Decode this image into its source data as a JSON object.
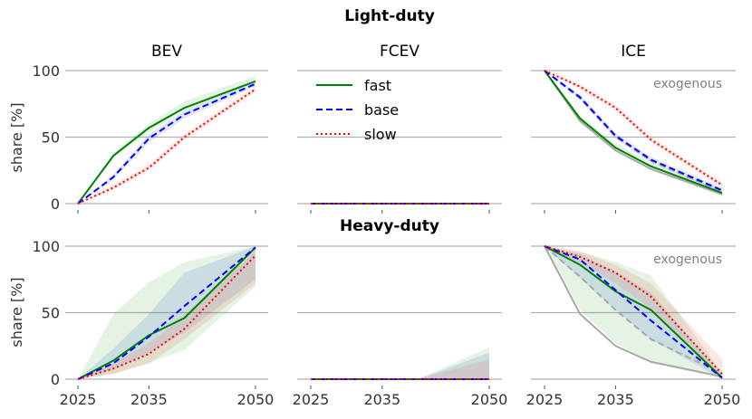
{
  "figure": {
    "title_light": "Light-duty",
    "title_heavy": "Heavy-duty",
    "col_titles": [
      "BEV",
      "FCEV",
      "ICE"
    ],
    "ylabel": "share [%]",
    "annotation": "exogenous"
  },
  "chart_data": {
    "type": "line",
    "x": [
      2025,
      2030,
      2035,
      2040,
      2050
    ],
    "xticks": [
      "2025",
      "2035",
      "2050"
    ],
    "xticks_values": [
      2025,
      2035,
      2050
    ],
    "yticks": [
      "0",
      "50",
      "100"
    ],
    "yticks_values": [
      0,
      50,
      100
    ],
    "xlim": [
      2025,
      2050
    ],
    "ylim": [
      0,
      100
    ],
    "grid": "horizontal",
    "legend": {
      "location": "top-left of FCEV light-duty panel",
      "entries": [
        "fast",
        "base",
        "slow"
      ]
    },
    "series_styles": {
      "fast": {
        "color": "#008000",
        "dash": "solid"
      },
      "base": {
        "color": "#0000ff",
        "dash": "dashed"
      },
      "slow": {
        "color": "#ff0000",
        "dash": "dotted"
      }
    },
    "panels": [
      {
        "row": "Light-duty",
        "col": "BEV",
        "series": {
          "fast": [
            0,
            36,
            57,
            72,
            92
          ],
          "base": [
            0,
            20,
            49,
            67,
            90
          ],
          "slow": [
            0,
            12,
            27,
            50,
            86
          ]
        },
        "bands": {
          "fast": {
            "lower": [
              0,
              34,
              54,
              70,
              91
            ],
            "upper": [
              0,
              38,
              60,
              77,
              96
            ]
          },
          "base": {
            "lower": [
              0,
              18,
              46,
              64,
              88
            ],
            "upper": [
              0,
              22,
              52,
              70,
              92
            ]
          },
          "slow": {
            "lower": [
              0,
              10,
              25,
              48,
              84
            ],
            "upper": [
              0,
              14,
              29,
              52,
              88
            ]
          }
        }
      },
      {
        "row": "Light-duty",
        "col": "FCEV",
        "series": {
          "fast": [
            0,
            0,
            0,
            0,
            0
          ],
          "base": [
            0,
            0,
            0,
            0,
            0
          ],
          "slow": [
            0,
            0,
            0,
            0,
            0
          ]
        }
      },
      {
        "row": "Light-duty",
        "col": "ICE",
        "annotation": "exogenous",
        "series": {
          "fast": [
            100,
            64,
            42,
            28,
            8
          ],
          "base": [
            100,
            80,
            51,
            33,
            10
          ],
          "slow": [
            100,
            88,
            72,
            48,
            14
          ]
        },
        "bands": {
          "fast": {
            "lower": [
              100,
              62,
              39,
              25,
              6
            ],
            "upper": [
              100,
              66,
              45,
              31,
              10
            ]
          },
          "base": {
            "lower": [
              100,
              78,
              49,
              31,
              8
            ],
            "upper": [
              100,
              82,
              53,
              35,
              12
            ]
          },
          "slow": {
            "lower": [
              100,
              86,
              70,
              46,
              12
            ],
            "upper": [
              100,
              90,
              74,
              50,
              16
            ]
          }
        },
        "grey_series": [
          {
            "name": "exogenous-a",
            "values": [
              100,
              62,
              40,
              26,
              7
            ],
            "dash": "solid"
          },
          {
            "name": "exogenous-b",
            "values": [
              100,
              79,
              50,
              32,
              9
            ],
            "dash": "dashed"
          }
        ]
      },
      {
        "row": "Heavy-duty",
        "col": "BEV",
        "series": {
          "fast": [
            0,
            14,
            33,
            46,
            99
          ],
          "base": [
            0,
            12,
            32,
            55,
            99
          ],
          "slow": [
            0,
            8,
            19,
            38,
            93
          ]
        },
        "bands": {
          "fast": {
            "lower": [
              0,
              4,
              12,
              22,
              70
            ],
            "upper": [
              0,
              49,
              73,
              88,
              100
            ]
          },
          "base": {
            "lower": [
              0,
              7,
              20,
              35,
              75
            ],
            "upper": [
              0,
              23,
              49,
              80,
              100
            ]
          },
          "slow": {
            "lower": [
              0,
              4,
              12,
              30,
              72
            ],
            "upper": [
              0,
              12,
              27,
              48,
              96
            ]
          }
        }
      },
      {
        "row": "Heavy-duty",
        "col": "FCEV",
        "series": {
          "fast": [
            0,
            0,
            0,
            0,
            0
          ],
          "base": [
            0,
            0,
            0,
            0,
            0
          ],
          "slow": [
            0,
            0,
            0,
            0,
            0
          ]
        },
        "bands": {
          "fast": {
            "lower": [
              0,
              0,
              0,
              0,
              0
            ],
            "upper": [
              0,
              0,
              0,
              0,
              24
            ]
          },
          "base": {
            "lower": [
              0,
              0,
              0,
              0,
              0
            ],
            "upper": [
              0,
              0,
              0,
              0,
              20
            ]
          },
          "slow": {
            "lower": [
              0,
              0,
              0,
              0,
              0
            ],
            "upper": [
              0,
              0,
              0,
              0,
              15
            ]
          }
        }
      },
      {
        "row": "Heavy-duty",
        "col": "ICE",
        "annotation": "exogenous",
        "series": {
          "fast": [
            100,
            86,
            66,
            52,
            1
          ],
          "base": [
            100,
            90,
            67,
            44,
            1
          ],
          "slow": [
            100,
            92,
            80,
            62,
            4
          ]
        },
        "bands": {
          "fast": {
            "lower": [
              100,
              52,
              27,
              13,
              0
            ],
            "upper": [
              100,
              96,
              88,
              78,
              5
            ]
          },
          "base": {
            "lower": [
              100,
              76,
              52,
              30,
              0
            ],
            "upper": [
              100,
              94,
              81,
              65,
              3
            ]
          },
          "slow": {
            "lower": [
              100,
              88,
              72,
              53,
              2
            ],
            "upper": [
              100,
              96,
              86,
              72,
              15
            ]
          }
        },
        "grey_series": [
          {
            "name": "exogenous-a",
            "values": [
              100,
              49,
              25,
              13,
              2
            ],
            "dash": "solid"
          },
          {
            "name": "exogenous-b",
            "values": [
              100,
              77,
              52,
              30,
              4
            ],
            "dash": "dashed"
          }
        ]
      }
    ]
  }
}
